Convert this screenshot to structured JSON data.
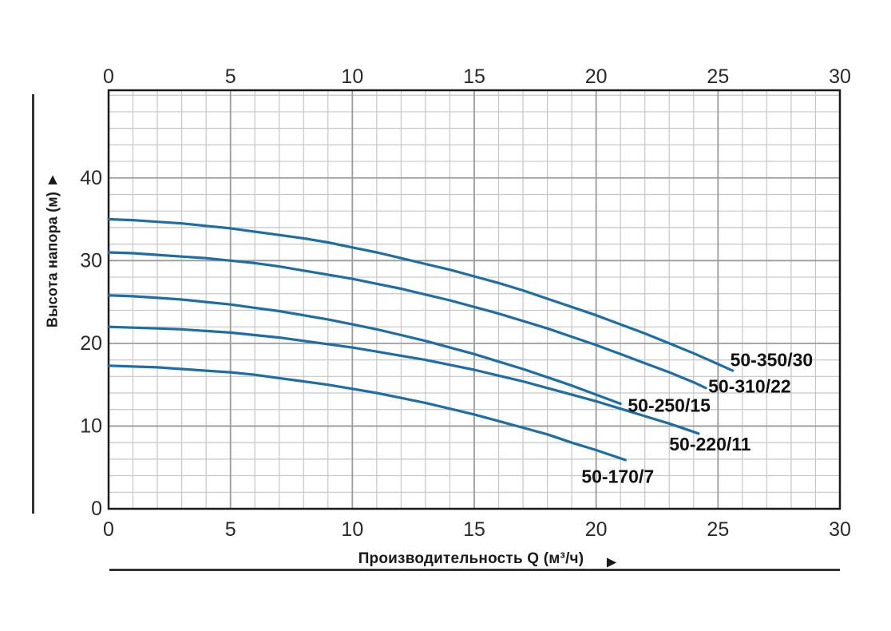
{
  "chart_data": {
    "type": "line",
    "title": "",
    "xlabel": "Производительность Q (м³/ч)",
    "ylabel": "Высота напора (м)",
    "xlim": [
      0,
      30
    ],
    "ylim": [
      0,
      50.6
    ],
    "x_major_ticks": [
      0,
      5,
      10,
      15,
      20,
      25,
      30
    ],
    "y_major_ticks": [
      0,
      10,
      20,
      30,
      40
    ],
    "x_minor_step": 1,
    "y_minor_step": 2,
    "grid": "minor and major gridlines on",
    "tick_label_rows": [
      "top",
      "bottom",
      "left"
    ],
    "legend_position": "inline labels at curve ends",
    "series": [
      {
        "name": "50-350/30",
        "label_at": [
          25.5,
          18.0
        ],
        "points": [
          [
            0,
            35
          ],
          [
            1,
            34.9
          ],
          [
            2,
            34.7
          ],
          [
            3,
            34.5
          ],
          [
            4,
            34.2
          ],
          [
            5,
            33.9
          ],
          [
            6,
            33.5
          ],
          [
            7,
            33.1
          ],
          [
            8,
            32.7
          ],
          [
            9,
            32.2
          ],
          [
            10,
            31.6
          ],
          [
            11,
            31.0
          ],
          [
            12,
            30.3
          ],
          [
            13,
            29.6
          ],
          [
            14,
            28.9
          ],
          [
            15,
            28.1
          ],
          [
            16,
            27.3
          ],
          [
            17,
            26.4
          ],
          [
            18,
            25.4
          ],
          [
            19,
            24.4
          ],
          [
            20,
            23.4
          ],
          [
            21,
            22.3
          ],
          [
            22,
            21.2
          ],
          [
            23,
            20.0
          ],
          [
            24,
            18.8
          ],
          [
            25,
            17.5
          ],
          [
            25.6,
            16.7
          ]
        ]
      },
      {
        "name": "50-310/22",
        "label_at": [
          24.6,
          14.8
        ],
        "points": [
          [
            0,
            31
          ],
          [
            1,
            30.9
          ],
          [
            2,
            30.7
          ],
          [
            3,
            30.5
          ],
          [
            4,
            30.3
          ],
          [
            5,
            30.0
          ],
          [
            6,
            29.7
          ],
          [
            7,
            29.3
          ],
          [
            8,
            28.8
          ],
          [
            9,
            28.3
          ],
          [
            10,
            27.8
          ],
          [
            11,
            27.2
          ],
          [
            12,
            26.6
          ],
          [
            13,
            25.9
          ],
          [
            14,
            25.2
          ],
          [
            15,
            24.4
          ],
          [
            16,
            23.6
          ],
          [
            17,
            22.7
          ],
          [
            18,
            21.8
          ],
          [
            19,
            20.8
          ],
          [
            20,
            19.8
          ],
          [
            21,
            18.7
          ],
          [
            22,
            17.6
          ],
          [
            23,
            16.5
          ],
          [
            24,
            15.3
          ],
          [
            24.5,
            14.6
          ]
        ]
      },
      {
        "name": "50-250/15",
        "label_at": [
          21.3,
          12.5
        ],
        "points": [
          [
            0,
            25.8
          ],
          [
            1,
            25.7
          ],
          [
            2,
            25.5
          ],
          [
            3,
            25.3
          ],
          [
            4,
            25.0
          ],
          [
            5,
            24.7
          ],
          [
            6,
            24.3
          ],
          [
            7,
            23.9
          ],
          [
            8,
            23.4
          ],
          [
            9,
            22.9
          ],
          [
            10,
            22.3
          ],
          [
            11,
            21.7
          ],
          [
            12,
            21.0
          ],
          [
            13,
            20.3
          ],
          [
            14,
            19.5
          ],
          [
            15,
            18.7
          ],
          [
            16,
            17.8
          ],
          [
            17,
            16.9
          ],
          [
            18,
            15.9
          ],
          [
            19,
            14.9
          ],
          [
            20,
            13.8
          ],
          [
            21,
            12.7
          ]
        ]
      },
      {
        "name": "50-220/11",
        "label_at": [
          23.0,
          7.8
        ],
        "points": [
          [
            0,
            22
          ],
          [
            1,
            21.9
          ],
          [
            2,
            21.8
          ],
          [
            3,
            21.7
          ],
          [
            4,
            21.5
          ],
          [
            5,
            21.3
          ],
          [
            6,
            21.0
          ],
          [
            7,
            20.7
          ],
          [
            8,
            20.3
          ],
          [
            9,
            19.9
          ],
          [
            10,
            19.5
          ],
          [
            11,
            19.0
          ],
          [
            12,
            18.5
          ],
          [
            13,
            18.0
          ],
          [
            14,
            17.4
          ],
          [
            15,
            16.8
          ],
          [
            16,
            16.1
          ],
          [
            17,
            15.4
          ],
          [
            18,
            14.6
          ],
          [
            19,
            13.8
          ],
          [
            20,
            13.0
          ],
          [
            21,
            12.1
          ],
          [
            22,
            11.2
          ],
          [
            23,
            10.3
          ],
          [
            24,
            9.3
          ],
          [
            24.2,
            9.1
          ]
        ]
      },
      {
        "name": "50-170/7",
        "label_at": [
          19.4,
          3.9
        ],
        "points": [
          [
            0,
            17.3
          ],
          [
            1,
            17.2
          ],
          [
            2,
            17.1
          ],
          [
            3,
            16.9
          ],
          [
            4,
            16.7
          ],
          [
            5,
            16.5
          ],
          [
            6,
            16.2
          ],
          [
            7,
            15.8
          ],
          [
            8,
            15.4
          ],
          [
            9,
            15.0
          ],
          [
            10,
            14.5
          ],
          [
            11,
            14.0
          ],
          [
            12,
            13.4
          ],
          [
            13,
            12.8
          ],
          [
            14,
            12.1
          ],
          [
            15,
            11.4
          ],
          [
            16,
            10.6
          ],
          [
            17,
            9.8
          ],
          [
            18,
            9.0
          ],
          [
            19,
            8.0
          ],
          [
            20,
            7.1
          ],
          [
            21.2,
            5.9
          ]
        ]
      }
    ]
  },
  "icons": {
    "y_axis_arrow": "▲",
    "x_axis_arrow": "▶"
  },
  "style": {
    "background": "#ffffff",
    "curve_color": "#1e6ea6",
    "minor_grid_color": "#c6c6c6",
    "major_grid_color": "#9b9b9b",
    "border_color": "#1a1a1a",
    "tick_text_color": "#2a2a2a",
    "label_text_color": "#111111"
  }
}
